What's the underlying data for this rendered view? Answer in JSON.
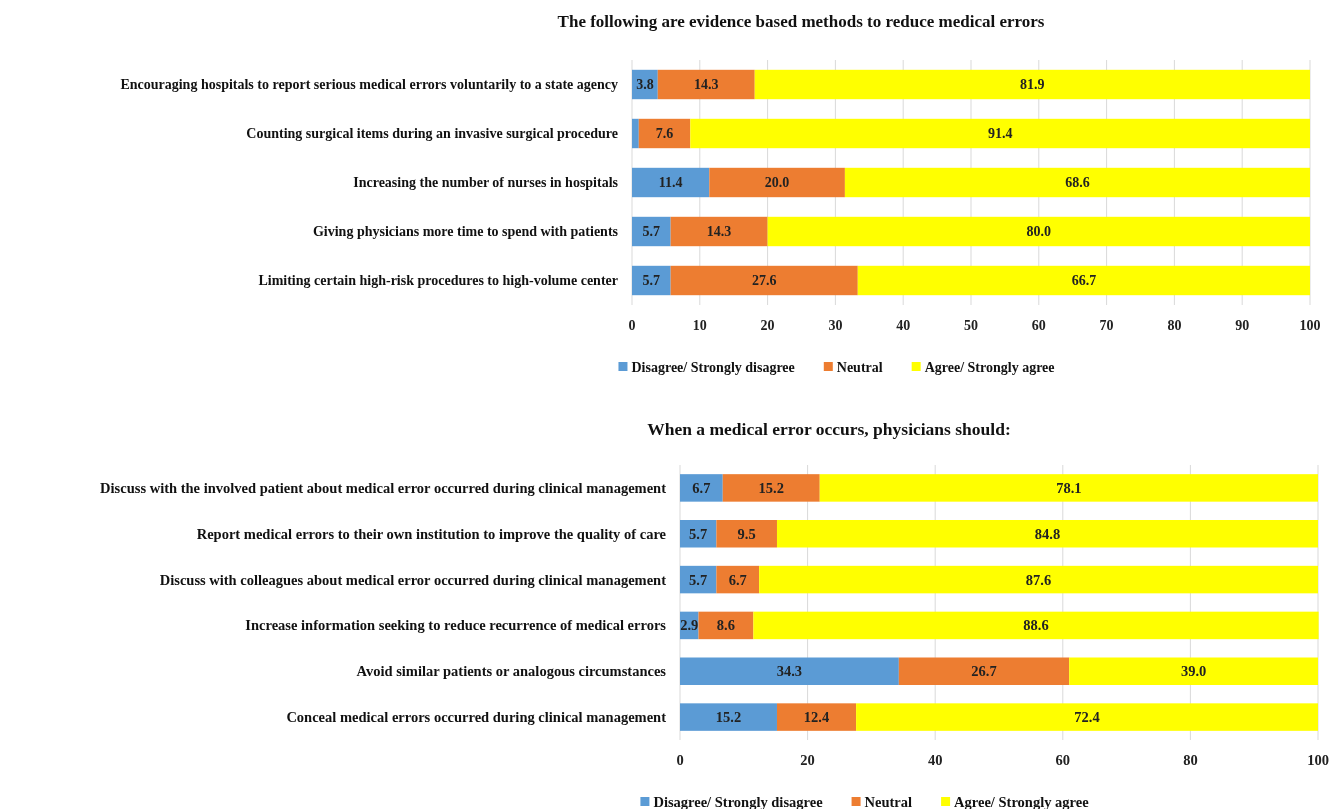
{
  "chart_data": [
    {
      "type": "bar",
      "orientation": "horizontal",
      "stacked": true,
      "title": "The following are evidence based methods to reduce medical errors",
      "categories": [
        "Encouraging hospitals to report serious medical errors voluntarily to a state agency",
        "Counting surgical items during an invasive surgical procedure",
        "Increasing the number of nurses in hospitals",
        "Giving physicians more time to spend with patients",
        "Limiting certain high-risk procedures to high-volume center"
      ],
      "series": [
        {
          "name": "Disagree/ Strongly disagree",
          "color": "#5b9bd5",
          "values": [
            3.8,
            1.0,
            11.4,
            5.7,
            5.7
          ],
          "value_labels": [
            "3.8",
            null,
            "11.4",
            "5.7",
            "5.7"
          ]
        },
        {
          "name": "Neutral",
          "color": "#ed7d31",
          "values": [
            14.3,
            7.6,
            20.0,
            14.3,
            27.6
          ],
          "value_labels": [
            "14.3",
            "7.6",
            "20.0",
            "14.3",
            "27.6"
          ]
        },
        {
          "name": "Agree/ Strongly agree",
          "color": "#ffff00",
          "values": [
            81.9,
            91.4,
            68.6,
            80.0,
            66.7
          ],
          "value_labels": [
            "81.9",
            "91.4",
            "68.6",
            "80.0",
            "66.7"
          ]
        }
      ],
      "xlim": [
        0,
        100
      ],
      "xticks": [
        0,
        10,
        20,
        30,
        40,
        50,
        60,
        70,
        80,
        90,
        100
      ],
      "grid": "x",
      "legend": "bottom"
    },
    {
      "type": "bar",
      "orientation": "horizontal",
      "stacked": true,
      "title": "When a medical error occurs, physicians should:",
      "categories": [
        "Discuss with the involved patient about medical error occurred during clinical management",
        "Report medical errors to their own institution to improve the quality of care",
        "Discuss with colleagues about medical error occurred during clinical management",
        "Increase information seeking to reduce recurrence of medical errors",
        "Avoid similar patients or analogous circumstances",
        "Conceal medical errors occurred during clinical management"
      ],
      "series": [
        {
          "name": "Disagree/ Strongly disagree",
          "color": "#5b9bd5",
          "values": [
            6.7,
            5.7,
            5.7,
            2.9,
            34.3,
            15.2
          ],
          "value_labels": [
            "6.7",
            "5.7",
            "5.7",
            "2.9",
            "34.3",
            "15.2"
          ]
        },
        {
          "name": "Neutral",
          "color": "#ed7d31",
          "values": [
            15.2,
            9.5,
            6.7,
            8.6,
            26.7,
            12.4
          ],
          "value_labels": [
            "15.2",
            "9.5",
            "6.7",
            "8.6",
            "26.7",
            "12.4"
          ]
        },
        {
          "name": "Agree/ Strongly agree",
          "color": "#ffff00",
          "values": [
            78.1,
            84.8,
            87.6,
            88.6,
            39.0,
            72.4
          ],
          "value_labels": [
            "78.1",
            "84.8",
            "87.6",
            "88.6",
            "39.0",
            "72.4"
          ]
        }
      ],
      "xlim": [
        0,
        100
      ],
      "xticks": [
        0,
        20,
        40,
        60,
        80,
        100
      ],
      "grid": "x",
      "legend": "bottom"
    }
  ]
}
